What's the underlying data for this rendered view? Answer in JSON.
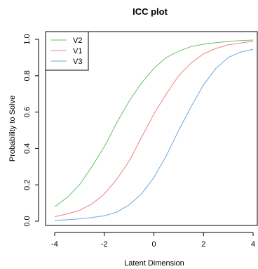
{
  "chart_data": {
    "type": "line",
    "title": "ICC plot",
    "xlabel": "Latent Dimension",
    "ylabel": "Probability to Solve",
    "xlim": [
      -4,
      4
    ],
    "ylim": [
      0,
      1
    ],
    "xticks": [
      "-4",
      "-2",
      "0",
      "2",
      "4"
    ],
    "yticks": [
      "0.0",
      "0.2",
      "0.4",
      "0.6",
      "0.8",
      "1.0"
    ],
    "legend": "top-left",
    "series": [
      {
        "name": "V2",
        "color": "#6bbf6b",
        "x": [
          -4,
          -3.5,
          -3,
          -2.5,
          -2,
          -1.5,
          -1,
          -0.5,
          0,
          0.5,
          1,
          1.5,
          2,
          2.5,
          3,
          3.5,
          4
        ],
        "y": [
          0.08,
          0.13,
          0.2,
          0.3,
          0.41,
          0.54,
          0.66,
          0.76,
          0.84,
          0.9,
          0.935,
          0.96,
          0.973,
          0.982,
          0.988,
          0.993,
          0.996
        ]
      },
      {
        "name": "V1",
        "color": "#f08080",
        "x": [
          -4,
          -3.5,
          -3,
          -2.5,
          -2,
          -1.5,
          -1,
          -0.5,
          0,
          0.5,
          1,
          1.5,
          2,
          2.5,
          3,
          3.5,
          4
        ],
        "y": [
          0.025,
          0.04,
          0.06,
          0.095,
          0.15,
          0.23,
          0.33,
          0.46,
          0.59,
          0.7,
          0.8,
          0.87,
          0.92,
          0.95,
          0.97,
          0.98,
          0.99
        ]
      },
      {
        "name": "V3",
        "color": "#6fa8dc",
        "x": [
          -4,
          -3.5,
          -3,
          -2.5,
          -2,
          -1.5,
          -1,
          -0.5,
          0,
          0.5,
          1,
          1.5,
          2,
          2.5,
          3,
          3.5,
          4
        ],
        "y": [
          0.005,
          0.008,
          0.013,
          0.02,
          0.03,
          0.05,
          0.09,
          0.15,
          0.24,
          0.36,
          0.5,
          0.63,
          0.75,
          0.84,
          0.9,
          0.93,
          0.945
        ]
      }
    ]
  }
}
